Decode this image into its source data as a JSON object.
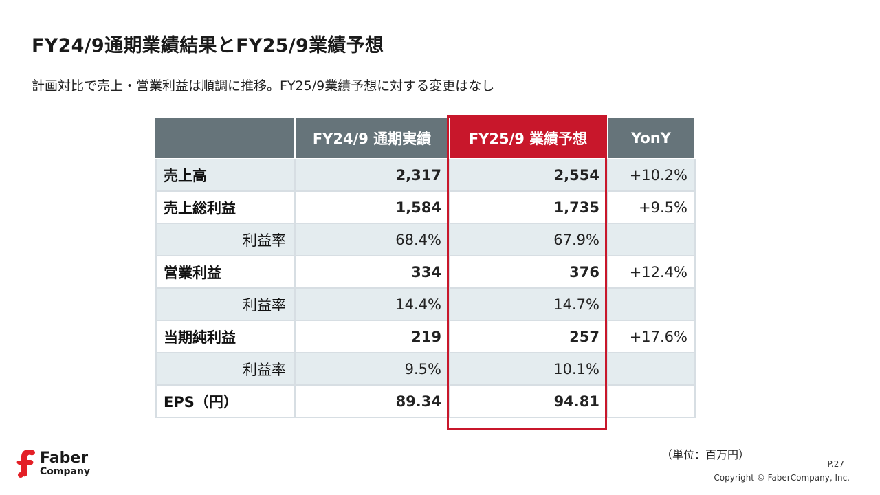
{
  "title": "FY24/9通期業績結果とFY25/9業績予想",
  "subtitle": "計画対比で売上・営業利益は順調に推移。FY25/9業績予想に対する変更はなし",
  "table": {
    "headers": [
      "",
      "FY24/9 通期実績",
      "FY25/9 業績予想",
      "YonY"
    ],
    "rows": [
      {
        "label": "売上高",
        "fy24": "2,317",
        "fy25": "2,554",
        "yoy": "+10.2%"
      },
      {
        "label": "売上総利益",
        "fy24": "1,584",
        "fy25": "1,735",
        "yoy": "+9.5%"
      },
      {
        "label": "利益率",
        "fy24": "68.4%",
        "fy25": "67.9%",
        "yoy": ""
      },
      {
        "label": "営業利益",
        "fy24": "334",
        "fy25": "376",
        "yoy": "+12.4%"
      },
      {
        "label": "利益率",
        "fy24": "14.4%",
        "fy25": "14.7%",
        "yoy": ""
      },
      {
        "label": "当期純利益",
        "fy24": "219",
        "fy25": "257",
        "yoy": "+17.6%"
      },
      {
        "label": "利益率",
        "fy24": "9.5%",
        "fy25": "10.1%",
        "yoy": ""
      },
      {
        "label": "EPS（円）",
        "fy24": "89.34",
        "fy25": "94.81",
        "yoy": ""
      }
    ]
  },
  "unit_note": "（単位：百万円）",
  "page_number": "P.27",
  "copyright": "Copyright © FaberCompany, Inc.",
  "logo": {
    "line1": "Faber",
    "line2": "Company",
    "icon": "faber-logo-mark"
  },
  "colors": {
    "accent": "#c8172b",
    "header_bg": "#66747a",
    "row_shade": "#e4ecef"
  }
}
